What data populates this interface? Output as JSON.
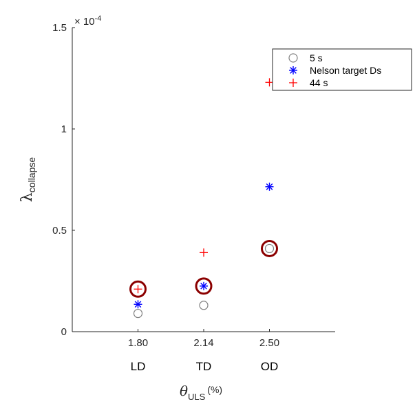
{
  "chart_data": {
    "type": "scatter",
    "title": "",
    "xlabel": "θ_ULS (%)",
    "ylabel": "λ_collapse",
    "ylabel_symbol": "λ",
    "ylabel_sub": "collapse",
    "xlabel_symbol": "θ",
    "xlabel_sub": "ULS",
    "xlabel_suffix": "(%)",
    "y_exponent_label": "× 10",
    "y_exponent": "-4",
    "y_ticks": [
      "0",
      "0.5",
      "1",
      "1.5"
    ],
    "y_tick_values": [
      0,
      0.5,
      1,
      1.5
    ],
    "ylim": [
      0,
      1.5
    ],
    "xlim": [
      0,
      4
    ],
    "x_ticks": [
      "1.80",
      "2.14",
      "2.50"
    ],
    "x_tick_positions": [
      1,
      2,
      3
    ],
    "categories": [
      "LD",
      "TD",
      "OD"
    ],
    "series": [
      {
        "name": "5 s",
        "marker": "circle",
        "color": "#808080",
        "values": [
          0.09,
          0.13,
          0.41
        ]
      },
      {
        "name": "Nelson target Ds",
        "marker": "asterisk",
        "color": "#0000ff",
        "values": [
          0.135,
          0.225,
          0.715
        ]
      },
      {
        "name": "44 s",
        "marker": "plus",
        "color": "#ff0000",
        "values": [
          0.21,
          0.39,
          1.23
        ]
      }
    ],
    "highlights": {
      "marker": "circle",
      "color": "#8b0000",
      "points": [
        {
          "x": 1,
          "y": 0.21
        },
        {
          "x": 2,
          "y": 0.225
        },
        {
          "x": 3,
          "y": 0.41
        }
      ]
    },
    "legend_position": "top-right",
    "grid": false
  }
}
